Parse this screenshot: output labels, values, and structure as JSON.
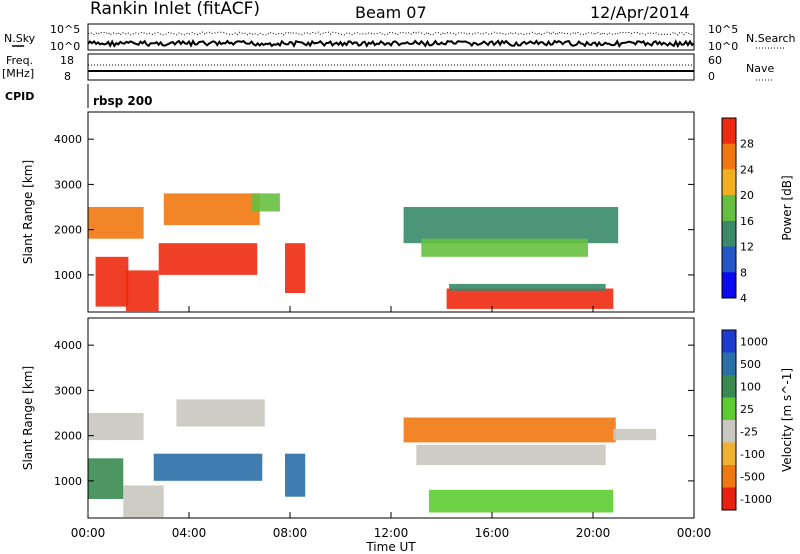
{
  "header": {
    "station": "Rankin Inlet (fitACF)",
    "beam": "Beam 07",
    "date": "12/Apr/2014"
  },
  "summary_panels": {
    "nsky_label": "N.Sky",
    "nsearch_label": "N.Search",
    "noise_ticks": [
      "10^5",
      "10^0"
    ],
    "freq_label": "Freq.",
    "freq_unit": "[MHz]",
    "freq_ticks": [
      "18",
      "8"
    ],
    "nave_label": "Nave",
    "nave_ticks": [
      "60",
      "0"
    ],
    "cpid_label": "CPID",
    "cpid_value": "rbsp 200"
  },
  "x_axis": {
    "title": "Time UT",
    "ticks": [
      "00:00",
      "04:00",
      "08:00",
      "12:00",
      "16:00",
      "20:00",
      "00:00"
    ],
    "tick_hours": [
      0,
      4,
      8,
      12,
      16,
      20,
      24
    ]
  },
  "chart_data": [
    {
      "type": "heatmap",
      "panel": "power",
      "ylabel": "Slant Range [km]",
      "yticks": [
        1000,
        2000,
        3000,
        4000
      ],
      "ylim": [
        180,
        4600
      ],
      "xlim_hours": [
        0,
        24
      ],
      "colorbar_label": "Power [dB]",
      "colorbar_ticks": [
        "28",
        "24",
        "20",
        "16",
        "12",
        "8",
        "4"
      ],
      "colorbar_colors": [
        "#0a0af0",
        "#2456c8",
        "#3a8a6a",
        "#66c040",
        "#f0b020",
        "#f07810",
        "#ee2a10"
      ],
      "regions": [
        {
          "t0": 0.0,
          "t1": 2.2,
          "r0": 1800,
          "r1": 2500,
          "level": 22
        },
        {
          "t0": 0.3,
          "t1": 1.6,
          "r0": 300,
          "r1": 1400,
          "level": 26
        },
        {
          "t0": 1.5,
          "t1": 2.8,
          "r0": 200,
          "r1": 1100,
          "level": 24
        },
        {
          "t0": 2.8,
          "t1": 6.7,
          "r0": 1000,
          "r1": 1700,
          "level": 24
        },
        {
          "t0": 3.0,
          "t1": 6.8,
          "r0": 2100,
          "r1": 2800,
          "level": 22
        },
        {
          "t0": 6.5,
          "t1": 7.6,
          "r0": 2400,
          "r1": 2800,
          "level": 14
        },
        {
          "t0": 7.8,
          "t1": 8.6,
          "r0": 600,
          "r1": 1700,
          "level": 24
        },
        {
          "t0": 12.5,
          "t1": 21.0,
          "r0": 1700,
          "r1": 2500,
          "level": 10
        },
        {
          "t0": 13.2,
          "t1": 19.8,
          "r0": 1400,
          "r1": 1800,
          "level": 12
        },
        {
          "t0": 14.2,
          "t1": 20.8,
          "r0": 250,
          "r1": 700,
          "level": 28
        },
        {
          "t0": 14.3,
          "t1": 20.5,
          "r0": 650,
          "r1": 800,
          "level": 8
        }
      ]
    },
    {
      "type": "heatmap",
      "panel": "velocity",
      "ylabel": "Slant Range [km]",
      "yticks": [
        1000,
        2000,
        3000,
        4000
      ],
      "ylim": [
        180,
        4600
      ],
      "xlim_hours": [
        0,
        24
      ],
      "colorbar_label": "Velocity [m s^-1]",
      "colorbar_ticks": [
        "1000",
        "500",
        "100",
        "25",
        "-25",
        "-100",
        "-500",
        "-1000"
      ],
      "colorbar_colors": [
        "#1c3cd0",
        "#2a6fa8",
        "#3a8a50",
        "#5ccc30",
        "#c8c8c0",
        "#f0b030",
        "#f07810",
        "#e82010"
      ],
      "regions": [
        {
          "t0": 0.0,
          "t1": 2.2,
          "r0": 1900,
          "r1": 2500,
          "level": 0
        },
        {
          "t0": 0.0,
          "t1": 1.4,
          "r0": 600,
          "r1": 1500,
          "level": 150
        },
        {
          "t0": 1.4,
          "t1": 3.0,
          "r0": 200,
          "r1": 900,
          "level": 0
        },
        {
          "t0": 2.6,
          "t1": 6.9,
          "r0": 1000,
          "r1": 1600,
          "level": 800
        },
        {
          "t0": 3.5,
          "t1": 7.0,
          "r0": 2200,
          "r1": 2800,
          "level": 0
        },
        {
          "t0": 7.8,
          "t1": 8.6,
          "r0": 650,
          "r1": 1600,
          "level": 800
        },
        {
          "t0": 12.5,
          "t1": 20.9,
          "r0": 1850,
          "r1": 2400,
          "level": -300
        },
        {
          "t0": 13.0,
          "t1": 20.5,
          "r0": 1350,
          "r1": 1800,
          "level": 0
        },
        {
          "t0": 13.5,
          "t1": 20.8,
          "r0": 300,
          "r1": 800,
          "level": 60
        },
        {
          "t0": 20.8,
          "t1": 22.5,
          "r0": 1900,
          "r1": 2150,
          "level": 0
        }
      ]
    }
  ]
}
